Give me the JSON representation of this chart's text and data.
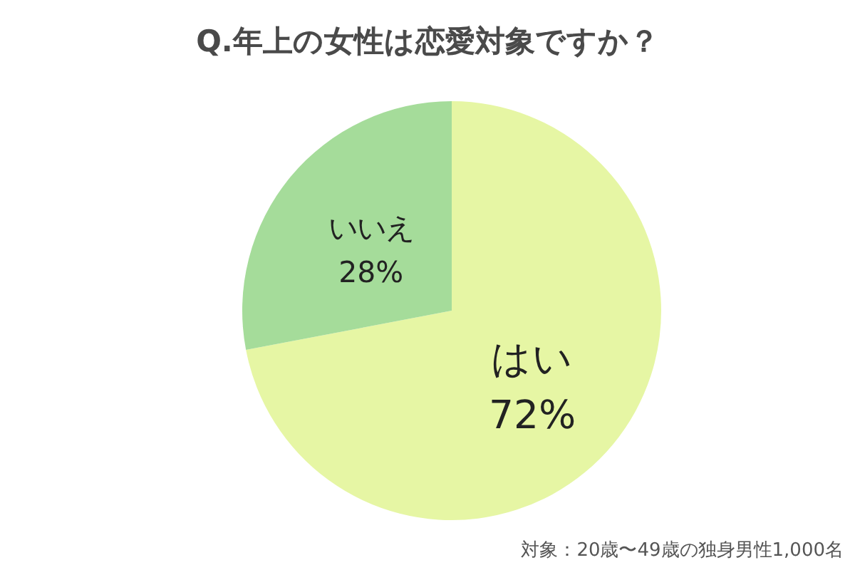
{
  "chart_data": {
    "type": "pie",
    "title": "Q.年上の女性は恋愛対象ですか？",
    "categories": [
      "はい",
      "いいえ"
    ],
    "values": [
      72,
      28
    ],
    "value_labels": [
      "72%",
      "28%"
    ],
    "colors": [
      "#e6f6a4",
      "#a5dc9a"
    ],
    "annotations": [
      "対象：20歳〜49歳の独身男性1,000名"
    ]
  }
}
